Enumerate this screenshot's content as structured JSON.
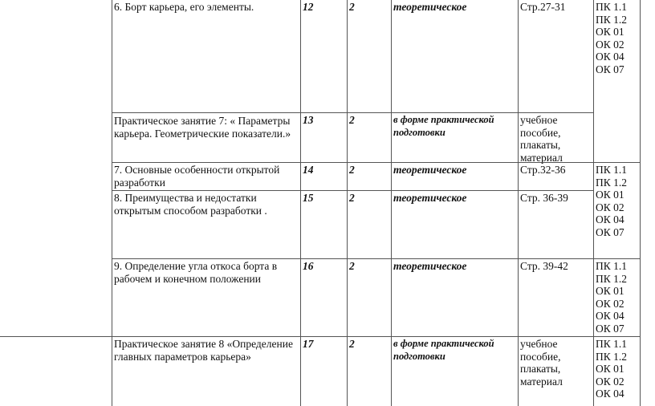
{
  "rows": [
    {
      "topic": "6. Борт карьера, его элементы.",
      "num": "12",
      "hours": "2",
      "type": "теоретическое",
      "source": "Стр.27-31"
    },
    {
      "topic": "Практическое занятие 7: « Параметры карьера. Геометрические показатели.»",
      "num": "13",
      "hours": "2",
      "type": "в форме практической подготовки",
      "source": "учебное пособие, плакаты, материал"
    },
    {
      "topic": "7. Основные особенности открытой разработки",
      "num": "14",
      "hours": "2",
      "type": "теоретическое",
      "source": "Стр.32-36"
    },
    {
      "topic": "8.  Преимущества и недостатки открытым способом разработки .",
      "num": "15",
      "hours": "2",
      "type": "теоретическое",
      "source": "Стр. 36-39"
    },
    {
      "topic": "9. Определение угла откоса борта в рабочем и конечном   положении",
      "num": "16",
      "hours": "2",
      "type": "теоретическое",
      "source": "Стр. 39-42"
    },
    {
      "topic": "Практическое занятие 8 «Определение главных параметров карьера»",
      "num": "17",
      "hours": "2",
      "type": "в форме практической подготовки",
      "source": "учебное пособие, плакаты, материал"
    }
  ],
  "competencies": [
    [
      "ПК 1.1",
      "ПК 1.2",
      "ОК 01",
      "ОК 02",
      "ОК 04",
      "ОК 07"
    ],
    [
      "ПК 1.1",
      "ПК 1.2",
      "ОК 01",
      "ОК 02",
      "ОК 04",
      "ОК 07"
    ],
    [
      "ПК 1.1",
      "ПК 1.2",
      "ОК 01",
      "ОК 02",
      "ОК 04",
      "ОК 07"
    ],
    [
      "ПК 1.1",
      "ПК 1.2",
      "ОК 01",
      "ОК 02",
      "ОК 04"
    ]
  ]
}
